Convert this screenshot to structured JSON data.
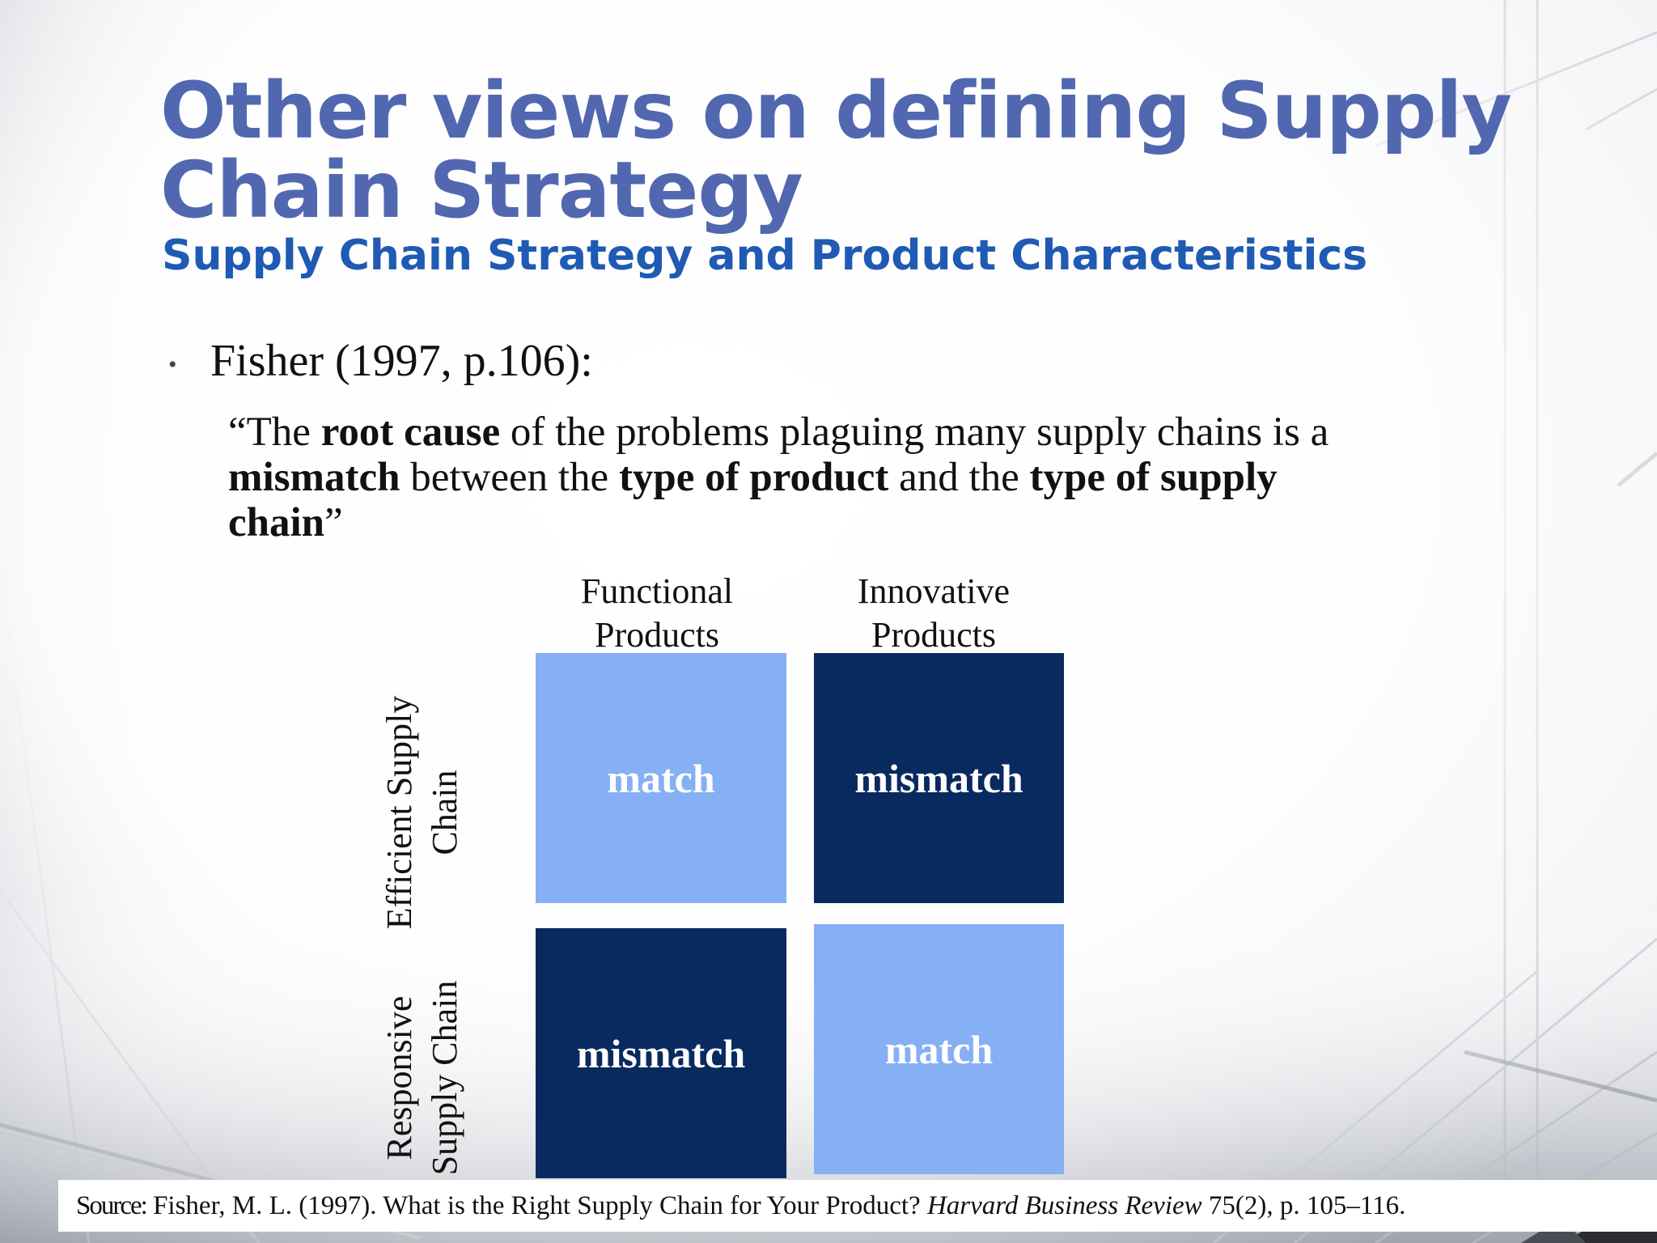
{
  "slide": {
    "title": "Other views on defining Supply Chain Strategy",
    "subtitle": "Supply Chain Strategy and Product Characteristics",
    "bullet": "Fisher (1997, p.106):",
    "quote": {
      "open": "“The ",
      "b1": "root cause",
      "t1": " of the problems plaguing many supply chains is a ",
      "b2": "mismatch",
      "t2": " between the ",
      "b3": "type of product",
      "t3": " and the ",
      "b4": "type of supply chain",
      "close": "”"
    }
  },
  "matrix": {
    "col1": "Functional Products",
    "col2": "Innovative Products",
    "row1": "Efficient Supply Chain",
    "row2": "Responsive Supply Chain",
    "cells": {
      "efficient_functional": "match",
      "efficient_innovative": "mismatch",
      "responsive_functional": "mismatch",
      "responsive_innovative": "match"
    },
    "colors": {
      "match": "#85b0f3",
      "mismatch": "#092a5f"
    }
  },
  "source": {
    "prefix": "Source:",
    "text1": " Fisher, M. L. (1997). What is the Right Supply Chain for Your Product? ",
    "journal": "Harvard Business Review",
    "text2": " 75(2), p. 105–116."
  }
}
